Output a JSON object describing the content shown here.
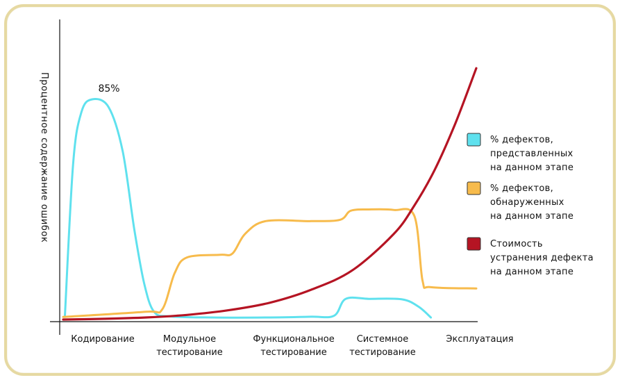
{
  "chart_data": {
    "type": "line",
    "title": "",
    "xlabel": "",
    "ylabel": "Процентное содержание ошибок",
    "categories": [
      [
        "Кодирование"
      ],
      [
        "Модульное",
        "тестирование"
      ],
      [
        "Функциональное",
        "тестирование"
      ],
      [
        "Системное",
        "тестирование"
      ],
      [
        "Эксплуатация"
      ]
    ],
    "grid": false,
    "legend_position": "right",
    "annotations": [
      {
        "text": "85%",
        "series": 0,
        "x": 0.5,
        "y": 85
      }
    ],
    "series": [
      {
        "name": [
          "% дефектов,",
          "представленных",
          "на данном этапе"
        ],
        "color": "#5fe1ee",
        "points": [
          [
            0.02,
            1
          ],
          [
            0.12,
            60
          ],
          [
            0.22,
            80
          ],
          [
            0.35,
            85
          ],
          [
            0.55,
            82
          ],
          [
            0.72,
            65
          ],
          [
            0.86,
            35
          ],
          [
            0.98,
            14
          ],
          [
            1.1,
            3
          ],
          [
            1.3,
            1.2
          ],
          [
            1.8,
            0.8
          ],
          [
            2.5,
            0.8
          ],
          [
            3.0,
            1.1
          ],
          [
            3.28,
            1.5
          ],
          [
            3.42,
            8
          ],
          [
            3.7,
            8
          ],
          [
            4.1,
            7.8
          ],
          [
            4.3,
            5
          ],
          [
            4.45,
            0.8
          ]
        ]
      },
      {
        "name": [
          "% дефектов,",
          "обнаруженных",
          "на данном этапе"
        ],
        "color": "#f7bb4c",
        "points": [
          [
            0,
            1
          ],
          [
            1.0,
            3
          ],
          [
            1.2,
            4
          ],
          [
            1.35,
            18
          ],
          [
            1.5,
            24
          ],
          [
            1.9,
            25
          ],
          [
            2.05,
            25.5
          ],
          [
            2.2,
            33
          ],
          [
            2.45,
            38
          ],
          [
            3.0,
            38
          ],
          [
            3.35,
            38.5
          ],
          [
            3.48,
            42
          ],
          [
            3.7,
            42.5
          ],
          [
            4.0,
            42.3
          ],
          [
            4.25,
            40
          ],
          [
            4.35,
            15
          ],
          [
            4.45,
            12.5
          ],
          [
            5.0,
            12
          ]
        ]
      },
      {
        "name": [
          "Стоимость",
          "устранения дефекта",
          "на данном этапе"
        ],
        "color": "#b51423",
        "points": [
          [
            0,
            0
          ],
          [
            0.5,
            0.3
          ],
          [
            1.0,
            0.8
          ],
          [
            1.5,
            1.8
          ],
          [
            2.0,
            3.6
          ],
          [
            2.5,
            6.5
          ],
          [
            3.0,
            11.5
          ],
          [
            3.5,
            19
          ],
          [
            4.0,
            33
          ],
          [
            4.25,
            44
          ],
          [
            4.5,
            58
          ],
          [
            4.75,
            76
          ],
          [
            5.0,
            97
          ]
        ]
      }
    ],
    "ylim": [
      0,
      100
    ],
    "xlim": [
      -0.03,
      5.0
    ]
  }
}
